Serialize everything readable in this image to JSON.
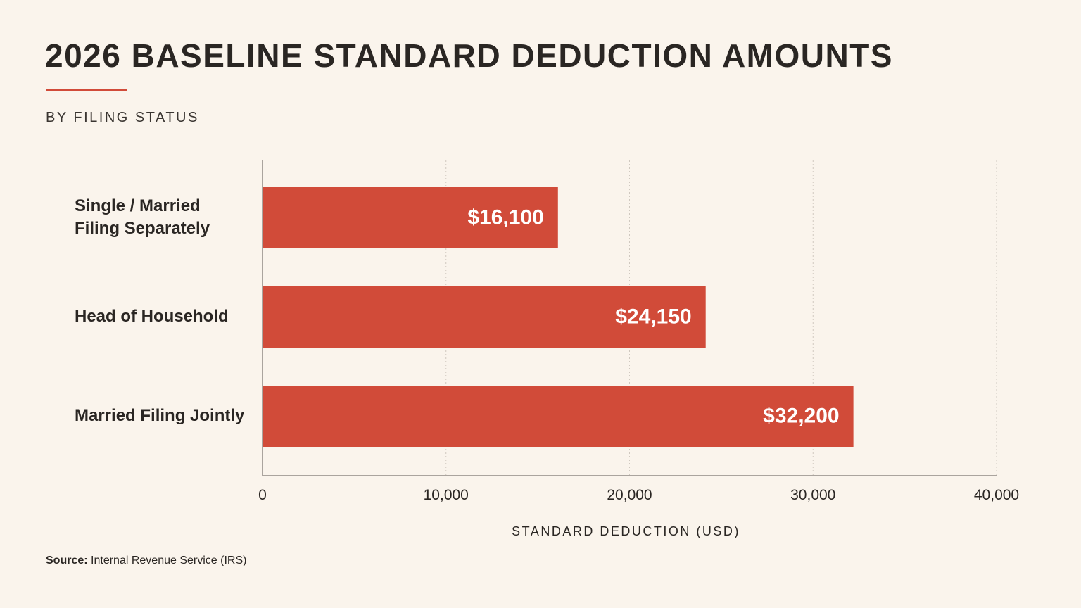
{
  "chart_data": {
    "type": "bar",
    "orientation": "horizontal",
    "title": "2026 BASELINE STANDARD DEDUCTION AMOUNTS",
    "subtitle": "BY FILING STATUS",
    "categories": [
      [
        "Single / Married",
        "Filing Separately"
      ],
      [
        "Head of Household"
      ],
      [
        "Married Filing Jointly"
      ]
    ],
    "values": [
      16100,
      24150,
      32200
    ],
    "value_labels": [
      "$16,100",
      "$24,150",
      "$32,200"
    ],
    "xlabel": "STANDARD DEDUCTION (USD)",
    "xlim": [
      0,
      40000
    ],
    "xticks": [
      0,
      10000,
      20000,
      30000,
      40000
    ],
    "xtick_labels": [
      "0",
      "10,000",
      "20,000",
      "30,000",
      "40,000"
    ],
    "grid": "vertical dashed",
    "colors": {
      "bar": "#d14b39",
      "bar_label": "#ffffff",
      "background": "#faf4ec",
      "accent_rule": "#d14b39",
      "grid": "#cfc8bf",
      "axis": "#8f8a84"
    }
  },
  "source": {
    "label": "Source:",
    "text": "Internal Revenue Service (IRS)"
  }
}
